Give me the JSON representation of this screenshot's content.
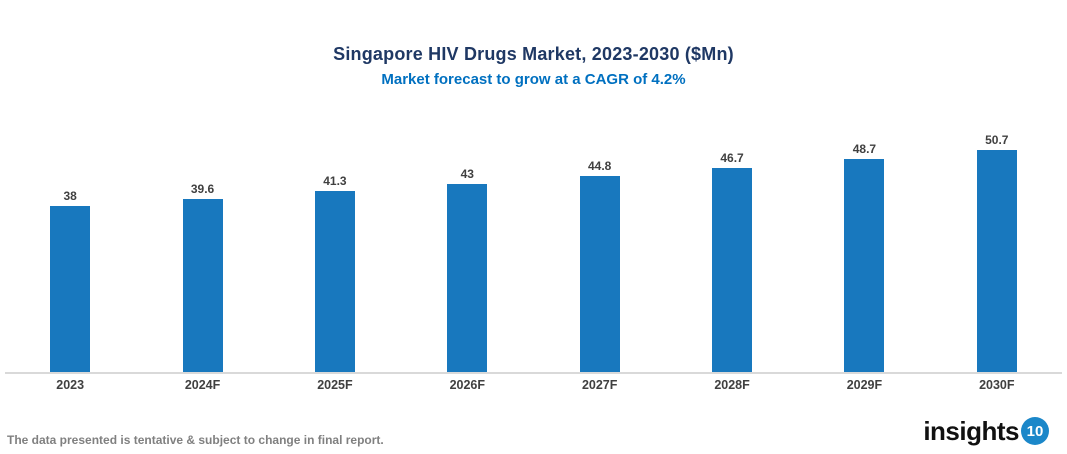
{
  "header": {
    "title": "Singapore HIV Drugs Market, 2023-2030 ($Mn)",
    "subtitle": "Market forecast to grow at a CAGR of 4.2%"
  },
  "chart_data": {
    "type": "bar",
    "categories": [
      "2023",
      "2024F",
      "2025F",
      "2026F",
      "2027F",
      "2028F",
      "2029F",
      "2030F"
    ],
    "values": [
      38,
      39.6,
      41.3,
      43,
      44.8,
      46.7,
      48.7,
      50.7
    ],
    "value_labels": [
      "38",
      "39.6",
      "41.3",
      "43",
      "44.8",
      "46.7",
      "48.7",
      "50.7"
    ],
    "title": "Singapore HIV Drugs Market, 2023-2030 ($Mn)",
    "subtitle": "Market forecast to grow at a CAGR of 4.2%",
    "xlabel": "",
    "ylabel": "",
    "ylim": [
      0,
      55
    ],
    "grid": false,
    "legend": "none",
    "bar_color": "#1878BE"
  },
  "footer": {
    "note": "The data presented is tentative & subject to change in final report.",
    "logo_text": "insights",
    "logo_badge": "10"
  },
  "colors": {
    "title": "#1F3864",
    "subtitle": "#0070C0",
    "bar": "#1878BE",
    "axis_line": "#D9D9D9",
    "label": "#404040",
    "note": "#808080",
    "logo_badge_bg": "#1B87C9"
  }
}
